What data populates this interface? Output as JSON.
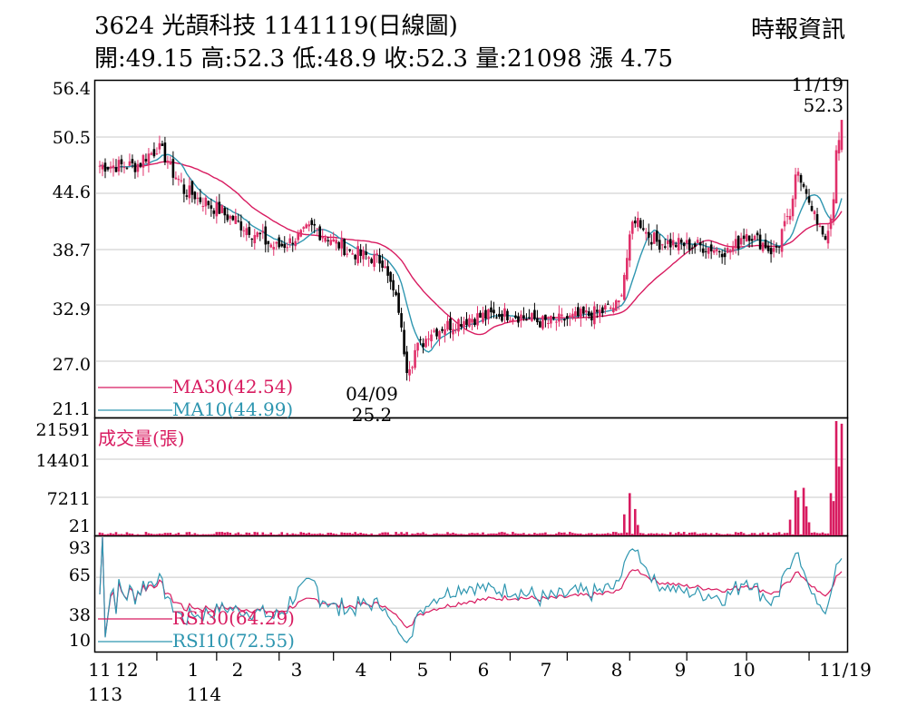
{
  "header": {
    "title": "3624  光頡科技 1141119(日線圖)",
    "ohlc": "開:49.15 高:52.3 低:48.9 收:52.3 量:21098 漲 4.75",
    "source": "時報資訊"
  },
  "colors": {
    "up": "#e0306a",
    "down": "#000000",
    "ma30": "#d81b60",
    "ma10": "#2e96b0",
    "volume": "#d81b60",
    "rsi30": "#d81b60",
    "rsi10": "#2e96b0",
    "grid": "#c8c8c8"
  },
  "chart_data": [
    {
      "type": "candlestick",
      "title": "3624 光頡科技 1141119(日線圖)",
      "ylim": [
        21.1,
        56.4
      ],
      "yticks": [
        "56.4",
        "50.5",
        "44.6",
        "38.7",
        "32.9",
        "27.0",
        "21.1"
      ],
      "legend": [
        "MA30(42.54)",
        "MA10(44.99)"
      ],
      "annotations": [
        {
          "label": "04/09",
          "value": "25.2"
        },
        {
          "label": "11/19",
          "value": "52.3"
        }
      ],
      "series": [
        {
          "name": "MA30",
          "last": 42.54
        },
        {
          "name": "MA10",
          "last": 44.99
        }
      ],
      "close_keypoints": [
        {
          "date": "2024-11-01",
          "value": 47.5
        },
        {
          "date": "2024-11-20",
          "value": 47.5
        },
        {
          "date": "2024-12-02",
          "value": 49.5
        },
        {
          "date": "2024-12-15",
          "value": 45.0
        },
        {
          "date": "2025-01-01",
          "value": 43.0
        },
        {
          "date": "2025-01-20",
          "value": 40.5
        },
        {
          "date": "2025-02-01",
          "value": 38.8
        },
        {
          "date": "2025-02-20",
          "value": 41.0
        },
        {
          "date": "2025-03-10",
          "value": 38.5
        },
        {
          "date": "2025-03-28",
          "value": 37.5
        },
        {
          "date": "2025-04-01",
          "value": 35.0
        },
        {
          "date": "2025-04-07",
          "value": 30.0
        },
        {
          "date": "2025-04-09",
          "value": 26.5
        },
        {
          "date": "2025-04-20",
          "value": 30.0
        },
        {
          "date": "2025-05-10",
          "value": 31.5
        },
        {
          "date": "2025-06-01",
          "value": 32.0
        },
        {
          "date": "2025-06-20",
          "value": 31.0
        },
        {
          "date": "2025-07-15",
          "value": 32.0
        },
        {
          "date": "2025-07-28",
          "value": 33.0
        },
        {
          "date": "2025-08-01",
          "value": 39.5
        },
        {
          "date": "2025-08-05",
          "value": 42.0
        },
        {
          "date": "2025-08-15",
          "value": 39.5
        },
        {
          "date": "2025-09-10",
          "value": 39.0
        },
        {
          "date": "2025-09-22",
          "value": 38.5
        },
        {
          "date": "2025-10-01",
          "value": 40.5
        },
        {
          "date": "2025-10-15",
          "value": 38.5
        },
        {
          "date": "2025-10-22",
          "value": 41.5
        },
        {
          "date": "2025-10-28",
          "value": 47.0
        },
        {
          "date": "2025-11-05",
          "value": 42.0
        },
        {
          "date": "2025-11-12",
          "value": 40.0
        },
        {
          "date": "2025-11-19",
          "value": 52.3
        }
      ]
    },
    {
      "type": "bar",
      "title": "成交量(張)",
      "ylim": [
        21,
        21591
      ],
      "yticks": [
        "21591",
        "14401",
        "7211",
        "21"
      ],
      "spikes": [
        {
          "date": "2025-07-30",
          "value": 4000
        },
        {
          "date": "2025-08-01",
          "value": 8000
        },
        {
          "date": "2025-08-05",
          "value": 5000
        },
        {
          "date": "2025-08-06",
          "value": 2000
        },
        {
          "date": "2025-09-27",
          "value": 2000
        },
        {
          "date": "2025-10-23",
          "value": 3000
        },
        {
          "date": "2025-10-27",
          "value": 8500
        },
        {
          "date": "2025-10-28",
          "value": 7200
        },
        {
          "date": "2025-10-30",
          "value": 9000
        },
        {
          "date": "2025-10-31",
          "value": 5500
        },
        {
          "date": "2025-11-03",
          "value": 2500
        },
        {
          "date": "2025-11-13",
          "value": 8000
        },
        {
          "date": "2025-11-14",
          "value": 6500
        },
        {
          "date": "2025-11-17",
          "value": 21591
        },
        {
          "date": "2025-11-18",
          "value": 13000
        },
        {
          "date": "2025-11-19",
          "value": 21098
        }
      ]
    },
    {
      "type": "line",
      "ylim": [
        0,
        100
      ],
      "yticks": [
        "93",
        "65",
        "38",
        "10"
      ],
      "legend": [
        "RSI30(64.29)",
        "RSI10(72.55)"
      ],
      "series": [
        {
          "name": "RSI30",
          "last": 64.29
        },
        {
          "name": "RSI10",
          "last": 72.55
        }
      ]
    }
  ],
  "xaxis": {
    "months": [
      "11",
      "12",
      "1",
      "2",
      "3",
      "4",
      "5",
      "6",
      "7",
      "8",
      "9",
      "10",
      "11/19"
    ],
    "years": [
      "113",
      "114"
    ]
  }
}
